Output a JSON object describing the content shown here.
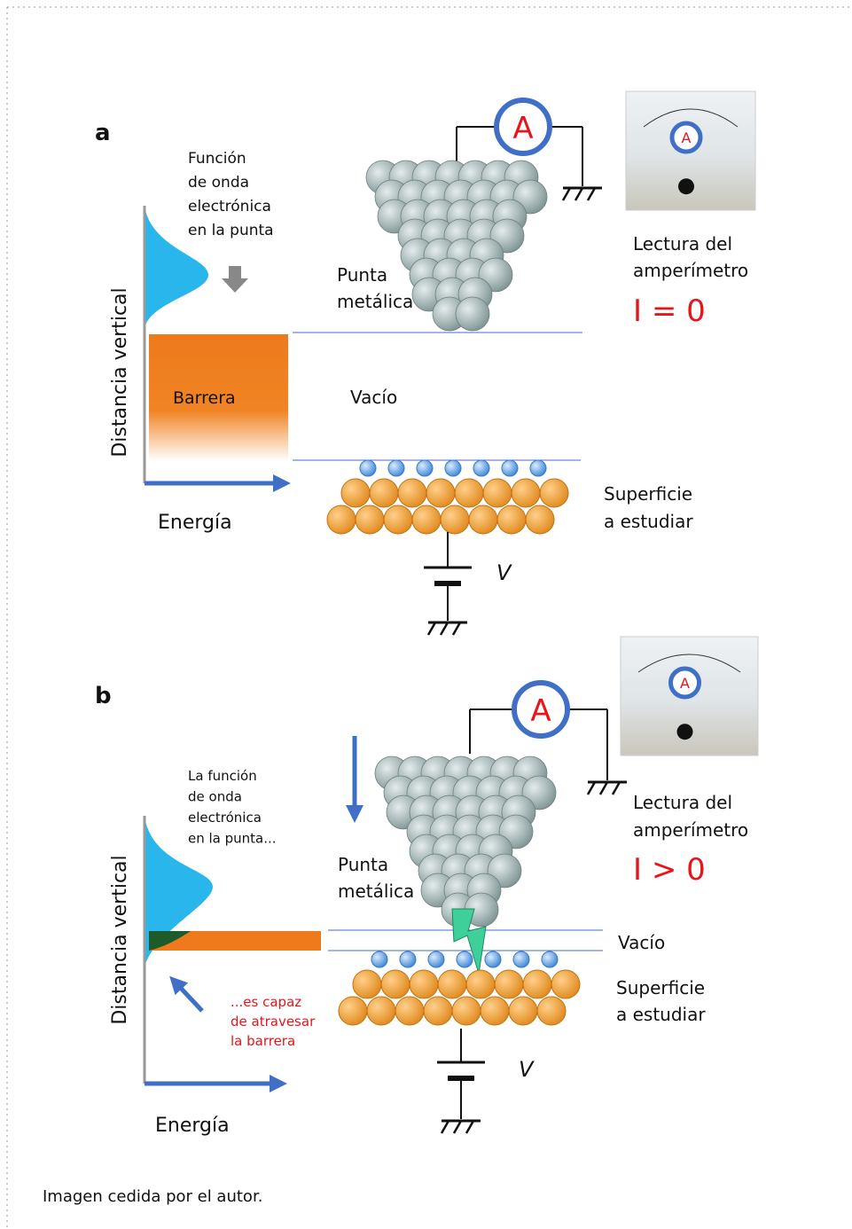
{
  "panels": [
    {
      "label": "a",
      "wave_note": [
        "Función",
        "de onda",
        "electrónica",
        "en la punta"
      ],
      "axis_label": "Distancia  vertical",
      "energy_label": "Energía",
      "barrier_label": "Barrera",
      "vacuum_label": "Vacío",
      "tip_label": [
        "Punta",
        "metálica"
      ],
      "surface_label": [
        "Superficie",
        "a estudiar"
      ],
      "voltage_label": "V",
      "ammeter_symbol": "A",
      "meter_symbol": "A",
      "reading_label": [
        "Lectura del",
        "amperímetro"
      ],
      "reading_value": "I = 0"
    },
    {
      "label": "b",
      "wave_note": [
        "La función",
        "de onda",
        "electrónica",
        "en la punta..."
      ],
      "tunnel_note": [
        "...es capaz",
        "de atravesar",
        "la barrera"
      ],
      "axis_label": "Distancia  vertical",
      "energy_label": "Energía",
      "vacuum_label": "Vacío",
      "tip_label": [
        "Punta",
        "metálica"
      ],
      "surface_label": [
        "Superficie",
        "a estudiar"
      ],
      "voltage_label": "V",
      "ammeter_symbol": "A",
      "meter_symbol": "A",
      "reading_label": [
        "Lectura del",
        "amperímetro"
      ],
      "reading_value": "I > 0"
    }
  ],
  "caption": "Imagen cedida por el autor."
}
